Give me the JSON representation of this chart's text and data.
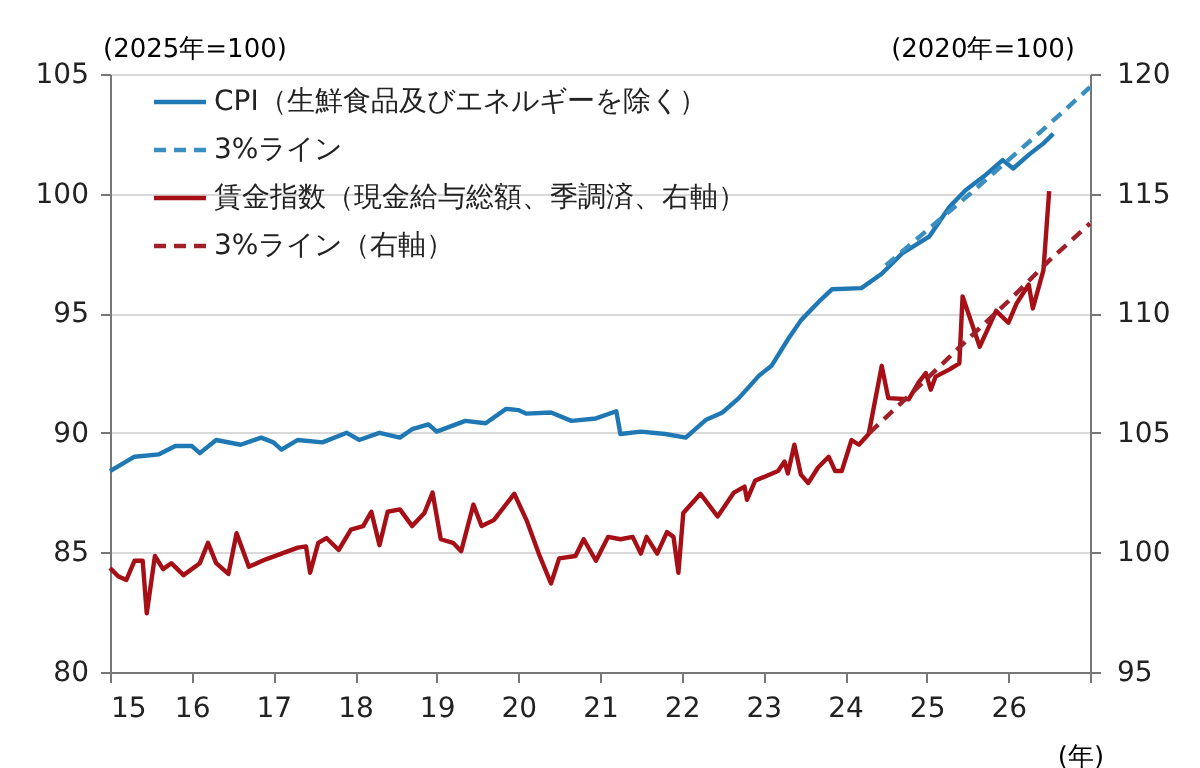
{
  "chart_data": {
    "type": "line",
    "ylabel": "(2025年=100)",
    "y2label": "(2020年=100)",
    "xlabel": "(年)",
    "xlim": [
      15,
      27
    ],
    "xticks": [
      15,
      16,
      17,
      18,
      19,
      20,
      21,
      22,
      23,
      24,
      25,
      26,
      {
        "value": 27,
        "label": null
      }
    ],
    "ylim": [
      80,
      105
    ],
    "yticks": [
      80,
      85,
      90,
      95,
      100,
      105
    ],
    "y2lim": [
      95,
      120
    ],
    "y2ticks": [
      95,
      100,
      105,
      110,
      115,
      120
    ],
    "grid": "y",
    "legend": "top left",
    "series": [
      {
        "name": "CPI（生鮮食品及びエネルギーを除く）",
        "color": "#1f78b4",
        "line_style": "solid",
        "x": [
          15.0,
          15.3,
          15.6,
          15.8,
          16.0,
          16.1,
          16.3,
          16.6,
          16.85,
          17.0,
          17.1,
          17.3,
          17.6,
          17.9,
          18.05,
          18.3,
          18.55,
          18.7,
          18.9,
          19.0,
          19.35,
          19.6,
          19.85,
          20.0,
          20.1,
          20.4,
          20.65,
          20.95,
          21.2,
          21.25,
          21.5,
          21.8,
          22.05,
          22.3,
          22.5,
          22.7,
          22.95,
          23.1,
          23.3,
          23.46,
          23.7,
          23.84,
          24.2,
          24.45,
          24.7,
          25.03,
          25.28,
          25.48,
          25.73,
          25.93,
          26.06,
          26.26,
          26.43,
          26.55
        ],
        "values": [
          88.4,
          89.0,
          89.1,
          89.45,
          89.45,
          89.15,
          89.7,
          89.5,
          89.8,
          89.6,
          89.3,
          89.7,
          89.6,
          90.0,
          89.7,
          90.0,
          89.8,
          90.15,
          90.35,
          90.05,
          90.5,
          90.4,
          91.0,
          90.95,
          90.8,
          90.85,
          90.5,
          90.6,
          90.9,
          89.95,
          90.05,
          89.95,
          89.8,
          90.55,
          90.85,
          91.45,
          92.4,
          92.8,
          93.9,
          94.7,
          95.55,
          96.0,
          96.05,
          96.65,
          97.5,
          98.2,
          99.45,
          100.15,
          100.8,
          101.4,
          101.05,
          101.65,
          102.1,
          102.5
        ]
      },
      {
        "name": "3%ライン",
        "color": "#3a8fc0",
        "line_style": "dashed",
        "x": [
          24.5,
          25,
          25.5,
          26,
          26.5,
          27
        ],
        "values": [
          97.0,
          98.45,
          99.9,
          101.4,
          102.9,
          104.45
        ]
      },
      {
        "name": "賃金指数（現金給与総額、季調済、右軸）",
        "color": "#a50f15",
        "line_style": "solid",
        "axis": "y2",
        "x": [
          15.0,
          15.1,
          15.2,
          15.3,
          15.4,
          15.45,
          15.55,
          15.65,
          15.75,
          15.9,
          16.1,
          16.2,
          16.3,
          16.45,
          16.55,
          16.7,
          16.9,
          17.1,
          17.3,
          17.4,
          17.45,
          17.55,
          17.65,
          17.8,
          17.95,
          18.1,
          18.2,
          18.3,
          18.4,
          18.55,
          18.7,
          18.85,
          18.95,
          19.05,
          19.2,
          19.3,
          19.45,
          19.55,
          19.7,
          19.95,
          20.1,
          20.25,
          20.4,
          20.5,
          20.7,
          20.8,
          20.95,
          21.1,
          21.25,
          21.4,
          21.5,
          21.57,
          21.7,
          21.82,
          21.9,
          21.96,
          22.02,
          22.23,
          22.44,
          22.64,
          22.77,
          22.8,
          22.9,
          23.18,
          23.26,
          23.3,
          23.38,
          23.46,
          23.55,
          23.67,
          23.8,
          23.88,
          23.96,
          24.08,
          24.17,
          24.29,
          24.45,
          24.53,
          24.78,
          24.9,
          24.99,
          25.05,
          25.11,
          25.28,
          25.4,
          25.44,
          25.65,
          25.85,
          26.0,
          26.1,
          26.25,
          26.3,
          26.43,
          26.5
        ],
        "values": [
          99.35,
          99.0,
          98.85,
          99.65,
          99.65,
          97.45,
          99.85,
          99.3,
          99.55,
          99.05,
          99.55,
          100.4,
          99.55,
          99.1,
          100.8,
          99.4,
          99.7,
          99.95,
          100.2,
          100.25,
          99.15,
          100.4,
          100.6,
          100.1,
          100.95,
          101.1,
          101.7,
          100.3,
          101.7,
          101.8,
          101.1,
          101.65,
          102.5,
          100.55,
          100.4,
          100.05,
          102.0,
          101.1,
          101.35,
          102.45,
          101.35,
          99.95,
          98.7,
          99.75,
          99.85,
          100.55,
          99.65,
          100.65,
          100.55,
          100.65,
          99.95,
          100.65,
          99.95,
          100.85,
          100.65,
          99.15,
          101.65,
          102.45,
          101.5,
          102.5,
          102.75,
          102.2,
          103.0,
          103.4,
          103.8,
          103.3,
          104.5,
          103.25,
          102.9,
          103.55,
          104.0,
          103.4,
          103.4,
          104.7,
          104.5,
          104.95,
          107.8,
          106.45,
          106.4,
          107.1,
          107.5,
          106.8,
          107.35,
          107.65,
          107.9,
          110.7,
          108.6,
          110.1,
          109.6,
          110.4,
          111.2,
          110.2,
          111.8,
          115.1
        ]
      },
      {
        "name": "3%ライン（右軸）",
        "color": "#a0202a",
        "line_style": "dashed",
        "axis": "y2",
        "x": [
          24.3,
          25,
          25.5,
          26,
          26.5,
          27
        ],
        "values": [
          105.0,
          107.25,
          108.9,
          110.5,
          112.2,
          113.75
        ]
      }
    ]
  }
}
